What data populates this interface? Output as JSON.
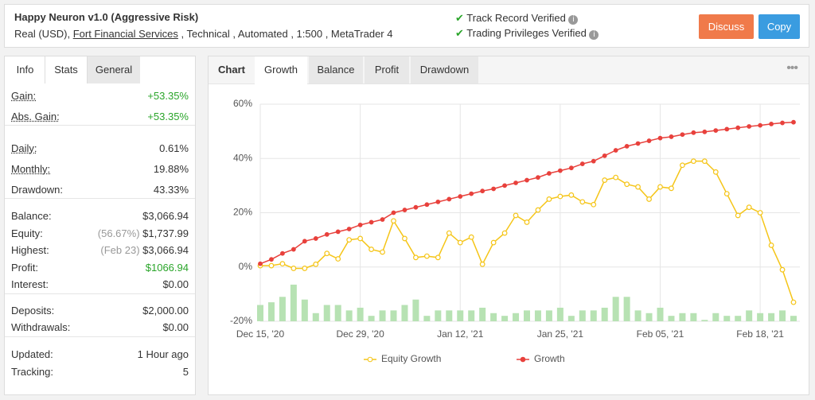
{
  "header": {
    "title": "Happy Neuron v1.0 (Aggressive Risk)",
    "account": "Real (USD),",
    "broker": "Fort Financial Services",
    "details": ", Technical , Automated , 1:500 , MetaTrader 4",
    "badges": [
      "Track Record Verified",
      "Trading Privileges Verified"
    ],
    "buttons": [
      "Discuss",
      "Copy"
    ]
  },
  "stats": {
    "tabs": [
      "Info",
      "Stats",
      "General"
    ],
    "rows": [
      {
        "label": "Gain:",
        "value": "+53.35%"
      },
      {
        "label": "Abs. Gain:",
        "value": "+53.35%"
      },
      {
        "label": "Daily:",
        "value": "0.61%"
      },
      {
        "label": "Monthly:",
        "value": "19.88%"
      },
      {
        "label": "Drawdown:",
        "value": "43.33%"
      },
      {
        "label": "Balance:",
        "value": "$3,066.94"
      },
      {
        "label": "Equity:",
        "note": "(56.67%)",
        "value": "$1,737.99"
      },
      {
        "label": "Highest:",
        "note": "(Feb 23)",
        "value": "$3,066.94"
      },
      {
        "label": "Profit:",
        "value": "$1066.94"
      },
      {
        "label": "Interest:",
        "value": "$0.00"
      },
      {
        "label": "Deposits:",
        "value": "$2,000.00"
      },
      {
        "label": "Withdrawals:",
        "value": "$0.00"
      },
      {
        "label": "Updated:",
        "value": "1 Hour ago"
      },
      {
        "label": "Tracking:",
        "value": "5"
      }
    ]
  },
  "chart_tabs": [
    "Chart",
    "Growth",
    "Balance",
    "Profit",
    "Drawdown"
  ],
  "chart_data": {
    "type": "line",
    "categories": [
      "Dec 15, '20",
      null,
      null,
      null,
      null,
      null,
      null,
      null,
      null,
      "Dec 29, '20",
      null,
      null,
      null,
      null,
      null,
      null,
      null,
      null,
      "Jan 12, '21",
      null,
      null,
      null,
      null,
      null,
      null,
      null,
      null,
      "Jan 25, '21",
      null,
      null,
      null,
      null,
      null,
      null,
      null,
      null,
      "Feb 05, '21",
      null,
      null,
      null,
      null,
      null,
      null,
      null,
      null,
      "Feb 18, '21",
      null,
      null,
      null
    ],
    "series": [
      {
        "name": "Equity Growth",
        "color": "#f5c518",
        "values": [
          0.5,
          0.5,
          1.2,
          -0.5,
          -0.5,
          1,
          5,
          3,
          10,
          10.5,
          6.5,
          5.5,
          17,
          10.5,
          3.5,
          4,
          3.5,
          12.5,
          9,
          11,
          1,
          9,
          12.5,
          19,
          16.5,
          21,
          25,
          26,
          26.5,
          24,
          23,
          32,
          33,
          30.5,
          29.5,
          25,
          29.5,
          29,
          37.5,
          39,
          39,
          35,
          27,
          19,
          22,
          20,
          8,
          -1,
          -13
        ]
      },
      {
        "name": "Growth",
        "color": "#e8413c",
        "values": [
          1.2,
          2.8,
          5,
          6.5,
          9.5,
          10.5,
          12,
          13,
          14,
          15.5,
          16.5,
          17.5,
          20,
          21,
          22,
          23,
          24,
          25,
          26,
          27,
          28,
          28.8,
          30,
          31,
          32,
          33,
          34.5,
          35.5,
          36.5,
          38,
          39,
          41,
          43,
          44.5,
          45.5,
          46.5,
          47.5,
          48,
          48.8,
          49.5,
          49.8,
          50.3,
          50.8,
          51.3,
          51.8,
          52.2,
          52.7,
          53.1,
          53.35
        ]
      },
      {
        "type": "bar",
        "color": "#b7e2b3",
        "values": [
          -14,
          -13,
          -11,
          -6.5,
          -12,
          -17,
          -14,
          -14,
          -16,
          -15,
          -18,
          -16,
          -16,
          -14,
          -12,
          -18,
          -16,
          -16,
          -16,
          -16,
          -15,
          -17,
          -18,
          -17,
          -16,
          -16,
          -16,
          -15,
          -18,
          -16,
          -16,
          -15,
          -11,
          -11,
          -16,
          -17,
          -15,
          -18,
          -17,
          -17,
          -19.5,
          -17,
          -18,
          -18,
          -16,
          -17,
          -17,
          -16,
          -18
        ]
      }
    ],
    "ylim": [
      -20,
      60
    ],
    "yticks": [
      {
        "value": -20,
        "label": "-20%"
      },
      {
        "value": 0,
        "label": "0%"
      },
      {
        "value": 20,
        "label": "20%"
      },
      {
        "value": 40,
        "label": "40%"
      },
      {
        "value": 60,
        "label": "60%"
      }
    ],
    "grid": true
  }
}
